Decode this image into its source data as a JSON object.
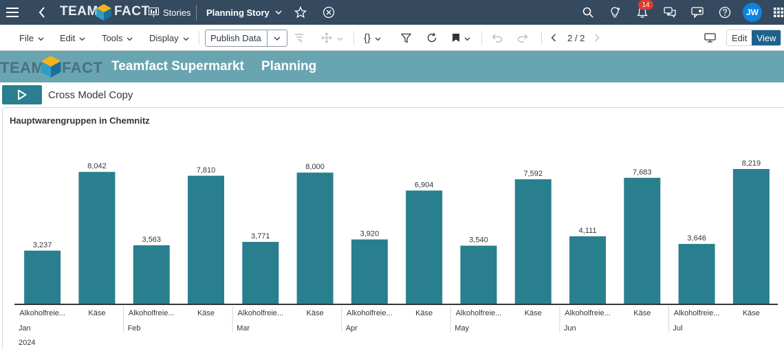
{
  "shell": {
    "logo_left": "TEAM",
    "logo_right": "FACT",
    "stories_label": "Stories",
    "story_title": "Planning Story",
    "notification_count": "14",
    "avatar_initials": "JW",
    "colors": {
      "background": "#354a5f",
      "avatar": "#0a84e0",
      "badge": "#e03c31"
    }
  },
  "toolbar": {
    "file": "File",
    "edit": "Edit",
    "tools": "Tools",
    "display": "Display",
    "publish": "Publish Data",
    "code_icon": "{}",
    "pager": "2 / 2",
    "edit_mode": "Edit",
    "view_mode": "View"
  },
  "banner": {
    "logo_left": "TEAM",
    "logo_right": "FACT",
    "company": "Teamfact Supermarkt",
    "page": "Planning",
    "color": "#69a5b0"
  },
  "action": {
    "label": "Cross Model Copy"
  },
  "chart_data": {
    "type": "bar",
    "title": "Hauptwarengruppen in Chemnitz",
    "year": "2024",
    "months": [
      "Jan",
      "Feb",
      "Mar",
      "Apr",
      "May",
      "Jun",
      "Jul"
    ],
    "categories": [
      "Alkoholfreie...",
      "Käse",
      "Alkoholfreie...",
      "Käse",
      "Alkoholfreie...",
      "Käse",
      "Alkoholfreie...",
      "Käse",
      "Alkoholfreie...",
      "Käse",
      "Alkoholfreie...",
      "Käse",
      "Alkoholfreie...",
      "Käse"
    ],
    "values": [
      3237,
      8042,
      3563,
      7810,
      3771,
      8000,
      3920,
      6904,
      3540,
      7592,
      4111,
      7683,
      3646,
      8219
    ],
    "value_labels": [
      "3,237",
      "8,042",
      "3,563",
      "7,810",
      "3,771",
      "8,000",
      "3,920",
      "6,904",
      "3,540",
      "7,592",
      "4,111",
      "7,683",
      "3,646",
      "8,219"
    ],
    "ylim": [
      0,
      8219
    ],
    "color": "#2a7f8e",
    "grid": false
  }
}
